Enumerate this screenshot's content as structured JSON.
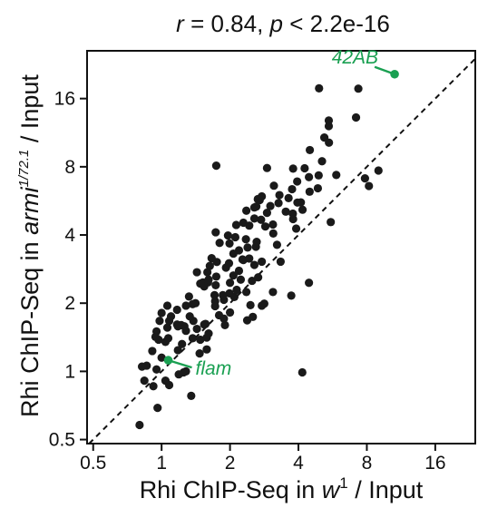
{
  "chart_data": {
    "type": "scatter",
    "title": {
      "r_symbol": "r",
      "r_text": " = 0.84, ",
      "p_symbol": "p",
      "p_text": " < 2.2e-16"
    },
    "xlabel": {
      "prefix": "Rhi ChIP-Seq in ",
      "italic": "w",
      "sup": "1",
      "suffix": " / Input"
    },
    "ylabel": {
      "prefix": "Rhi ChIP-Seq in ",
      "italic": "armi",
      "sup": "1/72.1",
      "suffix": " / Input"
    },
    "x_scale": "log2",
    "y_scale": "log2",
    "xlim": [
      0.47,
      24
    ],
    "ylim": [
      0.48,
      26
    ],
    "x_ticks": [
      0.5,
      1,
      2,
      4,
      8,
      16
    ],
    "x_tick_labels": [
      "0.5",
      "1",
      "2",
      "4",
      "8",
      "16"
    ],
    "y_ticks": [
      0.5,
      1,
      2,
      4,
      8,
      16
    ],
    "y_tick_labels": [
      "0.5",
      "1",
      "2",
      "4",
      "8",
      "16"
    ],
    "diagonal": "y = x (dashed)",
    "grid": false,
    "point_color": "#1a1a1a",
    "highlight_color": "#1aa052",
    "highlighted": [
      {
        "name": "42AB",
        "x": 10.6,
        "y": 20.5
      },
      {
        "name": "flam",
        "x": 1.07,
        "y": 1.12
      }
    ],
    "points": [
      [
        4.16,
        0.99
      ],
      [
        3.72,
        2.16
      ],
      [
        4.45,
        2.46
      ],
      [
        5.55,
        4.56
      ],
      [
        3.34,
        3.05
      ],
      [
        9.0,
        7.7
      ],
      [
        8.17,
        6.58
      ],
      [
        5.45,
        10.22
      ],
      [
        5.2,
        10.77
      ],
      [
        4.49,
        9.48
      ],
      [
        5.08,
        8.46
      ],
      [
        4.26,
        7.88
      ],
      [
        2.91,
        7.9
      ],
      [
        4.87,
        6.43
      ],
      [
        2.83,
        1.99
      ],
      [
        3.09,
        2.24
      ],
      [
        2.52,
        1.74
      ],
      [
        2.76,
        1.95
      ],
      [
        2.0,
        1.82
      ],
      [
        2.46,
        1.96
      ],
      [
        1.72,
        2.04
      ],
      [
        1.79,
        1.77
      ],
      [
        1.54,
        1.61
      ],
      [
        1.9,
        1.6
      ],
      [
        1.56,
        1.62
      ],
      [
        1.61,
        1.47
      ],
      [
        1.74,
        2.62
      ],
      [
        1.32,
        2.14
      ],
      [
        1.37,
        1.98
      ],
      [
        1.41,
        2.0
      ],
      [
        1.59,
        2.74
      ],
      [
        1.28,
        1.95
      ],
      [
        0.97,
        1.38
      ],
      [
        0.95,
        1.5
      ],
      [
        1.06,
        1.56
      ],
      [
        1.0,
        1.81
      ],
      [
        1.17,
        1.61
      ],
      [
        1.26,
        1.58
      ],
      [
        1.17,
        1.87
      ],
      [
        0.98,
        1.67
      ],
      [
        1.08,
        1.67
      ],
      [
        1.22,
        1.6
      ],
      [
        1.18,
        1.58
      ],
      [
        1.1,
        1.75
      ],
      [
        1.04,
        1.35
      ],
      [
        1.07,
        1.4
      ],
      [
        1.18,
        1.24
      ],
      [
        1.23,
        1.32
      ],
      [
        1.28,
        1.51
      ],
      [
        1.43,
        1.54
      ],
      [
        1.37,
        1.4
      ],
      [
        0.91,
        1.23
      ],
      [
        1.0,
        1.15
      ],
      [
        0.86,
        1.06
      ],
      [
        0.95,
        1.02
      ],
      [
        0.82,
        1.05
      ],
      [
        0.94,
        1.42
      ],
      [
        1.19,
        0.97
      ],
      [
        1.25,
        0.99
      ],
      [
        1.28,
        1.0
      ],
      [
        0.92,
        0.86
      ],
      [
        1.08,
        0.87
      ],
      [
        0.96,
        0.69
      ],
      [
        1.04,
        0.91
      ],
      [
        0.84,
        0.91
      ],
      [
        1.58,
        1.25
      ],
      [
        1.47,
        1.2
      ],
      [
        1.58,
        1.41
      ],
      [
        1.48,
        1.38
      ],
      [
        1.38,
        1.67
      ],
      [
        1.73,
        2.4
      ],
      [
        1.6,
        2.47
      ],
      [
        1.73,
        4.11
      ],
      [
        1.8,
        3.69
      ],
      [
        1.96,
        3.98
      ],
      [
        1.99,
        3.67
      ],
      [
        2.11,
        3.91
      ],
      [
        2.13,
        4.43
      ],
      [
        2.29,
        4.53
      ],
      [
        2.43,
        4.4
      ],
      [
        2.56,
        4.73
      ],
      [
        2.74,
        4.67
      ],
      [
        2.91,
        5.01
      ],
      [
        3.01,
        5.37
      ],
      [
        2.7,
        5.7
      ],
      [
        2.56,
        5.29
      ],
      [
        2.36,
        5.12
      ],
      [
        2.61,
        5.34
      ],
      [
        2.65,
        5.76
      ],
      [
        2.76,
        5.92
      ],
      [
        3.27,
        5.53
      ],
      [
        3.62,
        5.82
      ],
      [
        3.09,
        4.45
      ],
      [
        3.78,
        4.97
      ],
      [
        3.96,
        5.56
      ],
      [
        4.1,
        5.57
      ],
      [
        3.95,
        6.89
      ],
      [
        3.75,
        6.37
      ],
      [
        3.3,
        6.0
      ],
      [
        3.12,
        6.6
      ],
      [
        3.79,
        7.85
      ],
      [
        4.48,
        6.21
      ],
      [
        4.17,
        5.17
      ],
      [
        3.52,
        5.07
      ],
      [
        3.91,
        4.27
      ],
      [
        3.1,
        4.06
      ],
      [
        2.86,
        4.36
      ],
      [
        2.62,
        3.73
      ],
      [
        2.6,
        3.55
      ],
      [
        2.39,
        3.52
      ],
      [
        2.19,
        3.42
      ],
      [
        2.35,
        3.83
      ],
      [
        2.07,
        3.31
      ],
      [
        1.98,
        3.0
      ],
      [
        1.92,
        2.87
      ],
      [
        1.75,
        3.04
      ],
      [
        1.66,
        3.16
      ],
      [
        1.63,
        2.92
      ],
      [
        1.43,
        2.74
      ],
      [
        1.61,
        2.54
      ],
      [
        1.52,
        2.47
      ],
      [
        1.48,
        2.44
      ],
      [
        1.54,
        2.37
      ],
      [
        1.71,
        2.17
      ],
      [
        1.72,
        1.94
      ],
      [
        1.88,
        2.07
      ],
      [
        1.99,
        2.21
      ],
      [
        2.14,
        2.29
      ],
      [
        2.0,
        2.46
      ],
      [
        2.07,
        2.65
      ],
      [
        2.19,
        2.78
      ],
      [
        2.27,
        3.12
      ],
      [
        2.43,
        3.15
      ],
      [
        2.56,
        2.95
      ],
      [
        2.76,
        3.05
      ],
      [
        2.5,
        2.51
      ],
      [
        2.23,
        2.54
      ],
      [
        2.36,
        2.24
      ],
      [
        2.09,
        2.13
      ],
      [
        1.88,
        1.71
      ],
      [
        1.35,
        0.78
      ],
      [
        0.8,
        0.58
      ],
      [
        2.66,
        2.6
      ],
      [
        5.44,
        12.1
      ],
      [
        5.44,
        12.8
      ],
      [
        7.17,
        13.2
      ],
      [
        7.34,
        17.7
      ],
      [
        7.85,
        7.11
      ],
      [
        5.87,
        7.36
      ],
      [
        4.91,
        7.33
      ],
      [
        4.93,
        17.75
      ],
      [
        2.38,
        1.68
      ],
      [
        1.74,
        8.09
      ],
      [
        2.29,
        3.1
      ],
      [
        3.79,
        4.7
      ],
      [
        4.45,
        7.2
      ],
      [
        3.22,
        3.62
      ],
      [
        1.86,
        2.17
      ],
      [
        1.06,
        1.95
      ],
      [
        1.33,
        1.75
      ]
    ]
  }
}
